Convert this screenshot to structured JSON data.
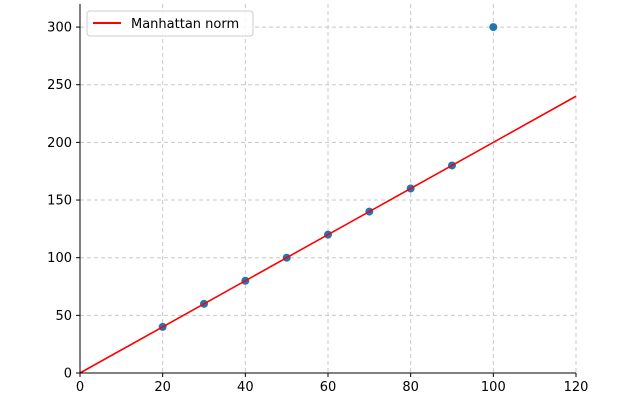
{
  "chart_data": {
    "type": "scatter",
    "xlim": [
      0,
      120
    ],
    "ylim": [
      0,
      320
    ],
    "x_ticks": [
      0,
      20,
      40,
      60,
      80,
      100,
      120
    ],
    "y_ticks": [
      0,
      50,
      100,
      150,
      200,
      250,
      300
    ],
    "grid": true,
    "grid_style": "dashed",
    "legend_position": "top-left",
    "points": {
      "x": [
        20,
        30,
        40,
        50,
        60,
        70,
        80,
        90,
        100
      ],
      "y": [
        40,
        60,
        80,
        100,
        120,
        140,
        160,
        180,
        300
      ],
      "color": "#1f77b4"
    },
    "line": {
      "name": "Manhattan norm",
      "x": [
        0,
        120
      ],
      "y": [
        0,
        240
      ],
      "color": "#ff0000"
    }
  }
}
